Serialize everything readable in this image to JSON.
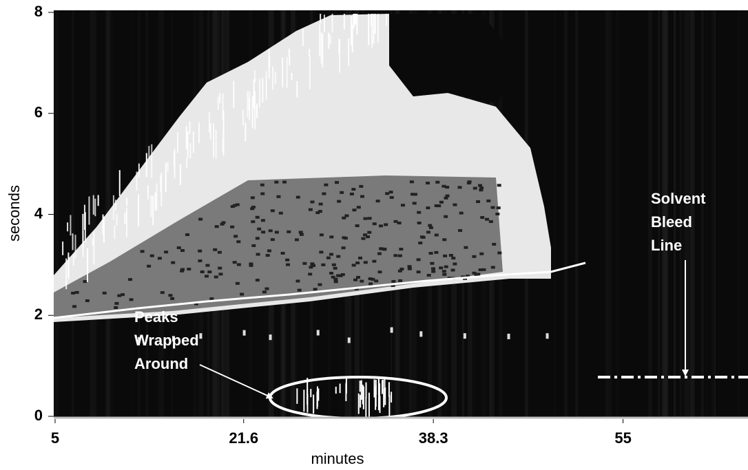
{
  "chart_data": {
    "type": "heatmap",
    "xlabel": "minutes",
    "ylabel": "seconds",
    "xlim": [
      5,
      66
    ],
    "ylim": [
      0,
      8
    ],
    "xticks": [
      5,
      21.6,
      38.3,
      55
    ],
    "yticks": [
      0,
      2,
      4,
      6,
      8
    ],
    "annotations": [
      {
        "lines": [
          "Peaks",
          "Wrapped",
          "Around"
        ]
      },
      {
        "lines": [
          "Solvent",
          "Bleed",
          "Line"
        ]
      }
    ]
  }
}
